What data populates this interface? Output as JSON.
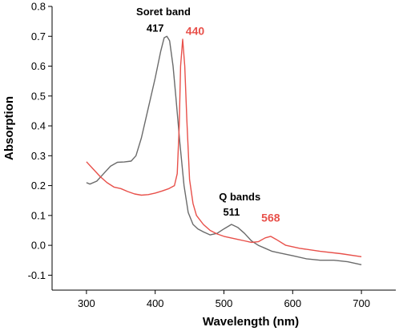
{
  "chart_data": {
    "type": "line",
    "title": "",
    "xlabel": "Wavelength (nm)",
    "ylabel": "Absorption",
    "xlim": [
      250,
      750
    ],
    "ylim": [
      -0.15,
      0.8
    ],
    "x_ticks": [
      300,
      400,
      500,
      600,
      700
    ],
    "y_ticks": [
      -0.1,
      0.0,
      0.1,
      0.2,
      0.3,
      0.4,
      0.5,
      0.6,
      0.7,
      0.8
    ],
    "y_tick_labels": [
      "-0.1",
      "0.0",
      "0.1",
      "0.2",
      "0.3",
      "0.4",
      "0.5",
      "0.6",
      "0.7",
      "0.8"
    ],
    "x_tick_labels": [
      "300",
      "400",
      "500",
      "600",
      "700"
    ],
    "grid": false,
    "series": [
      {
        "color": "#6b6b6b",
        "points": [
          [
            300,
            0.21
          ],
          [
            305,
            0.205
          ],
          [
            315,
            0.215
          ],
          [
            325,
            0.24
          ],
          [
            335,
            0.265
          ],
          [
            345,
            0.278
          ],
          [
            355,
            0.279
          ],
          [
            365,
            0.282
          ],
          [
            372,
            0.3
          ],
          [
            380,
            0.36
          ],
          [
            390,
            0.46
          ],
          [
            400,
            0.56
          ],
          [
            408,
            0.65
          ],
          [
            413,
            0.695
          ],
          [
            417,
            0.7
          ],
          [
            421,
            0.685
          ],
          [
            426,
            0.6
          ],
          [
            430,
            0.5
          ],
          [
            436,
            0.34
          ],
          [
            442,
            0.2
          ],
          [
            448,
            0.11
          ],
          [
            455,
            0.07
          ],
          [
            462,
            0.055
          ],
          [
            470,
            0.045
          ],
          [
            480,
            0.035
          ],
          [
            490,
            0.04
          ],
          [
            500,
            0.055
          ],
          [
            511,
            0.07
          ],
          [
            520,
            0.06
          ],
          [
            530,
            0.04
          ],
          [
            540,
            0.015
          ],
          [
            550,
            0.0
          ],
          [
            560,
            -0.01
          ],
          [
            570,
            -0.02
          ],
          [
            580,
            -0.025
          ],
          [
            600,
            -0.035
          ],
          [
            620,
            -0.045
          ],
          [
            640,
            -0.05
          ],
          [
            660,
            -0.05
          ],
          [
            680,
            -0.055
          ],
          [
            700,
            -0.065
          ]
        ]
      },
      {
        "color": "#e8504a",
        "points": [
          [
            300,
            0.28
          ],
          [
            310,
            0.255
          ],
          [
            320,
            0.23
          ],
          [
            330,
            0.21
          ],
          [
            340,
            0.195
          ],
          [
            350,
            0.19
          ],
          [
            360,
            0.18
          ],
          [
            370,
            0.172
          ],
          [
            380,
            0.168
          ],
          [
            390,
            0.17
          ],
          [
            400,
            0.175
          ],
          [
            410,
            0.182
          ],
          [
            420,
            0.19
          ],
          [
            428,
            0.2
          ],
          [
            432,
            0.24
          ],
          [
            435,
            0.4
          ],
          [
            437,
            0.6
          ],
          [
            440,
            0.69
          ],
          [
            443,
            0.6
          ],
          [
            446,
            0.42
          ],
          [
            450,
            0.22
          ],
          [
            455,
            0.14
          ],
          [
            460,
            0.1
          ],
          [
            470,
            0.07
          ],
          [
            480,
            0.05
          ],
          [
            490,
            0.038
          ],
          [
            500,
            0.03
          ],
          [
            510,
            0.025
          ],
          [
            520,
            0.02
          ],
          [
            530,
            0.015
          ],
          [
            540,
            0.01
          ],
          [
            550,
            0.012
          ],
          [
            560,
            0.025
          ],
          [
            568,
            0.03
          ],
          [
            576,
            0.02
          ],
          [
            590,
            0.0
          ],
          [
            610,
            -0.01
          ],
          [
            640,
            -0.02
          ],
          [
            670,
            -0.028
          ],
          [
            700,
            -0.038
          ]
        ]
      }
    ],
    "annotations": [
      {
        "id": "soret",
        "text": "Soret band",
        "x": 412,
        "y": 0.77,
        "color": "#000000",
        "anchor": "middle"
      },
      {
        "id": "peak417",
        "text": "417",
        "x": 400,
        "y": 0.715,
        "color": "#000000",
        "anchor": "middle"
      },
      {
        "id": "peak440",
        "text": "440",
        "x": 458,
        "y": 0.705,
        "color": "#e8504a",
        "anchor": "middle"
      },
      {
        "id": "qbands",
        "text": "Q bands",
        "x": 523,
        "y": 0.15,
        "color": "#000000",
        "anchor": "middle"
      },
      {
        "id": "peak511",
        "text": "511",
        "x": 511,
        "y": 0.1,
        "color": "#000000",
        "anchor": "middle"
      },
      {
        "id": "peak568",
        "text": "568",
        "x": 568,
        "y": 0.08,
        "color": "#e8504a",
        "anchor": "middle"
      }
    ]
  }
}
